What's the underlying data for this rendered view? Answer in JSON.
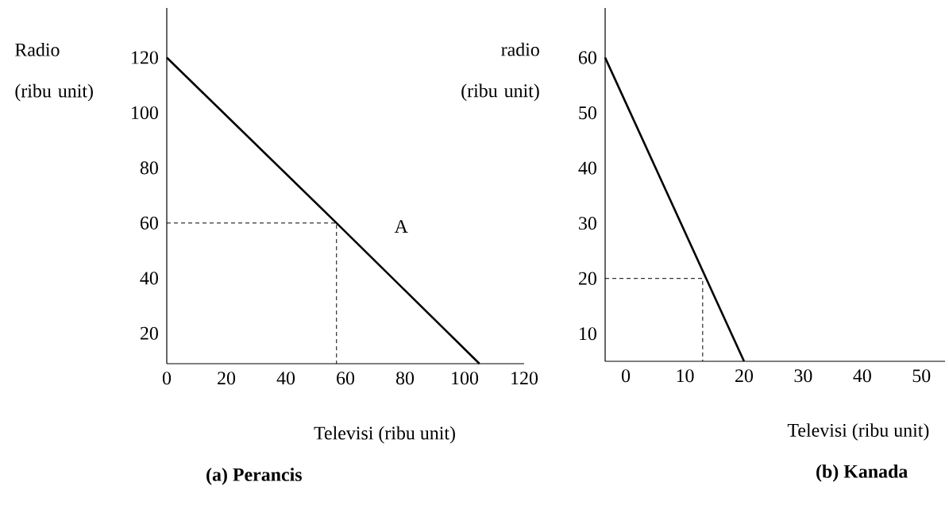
{
  "chart_data": [
    {
      "type": "line",
      "title": "(a) Perancis",
      "xlabel": "Televisi (ribu unit)",
      "ylabel": "Radio (ribu unit)",
      "xlim": [
        0,
        120
      ],
      "ylim": [
        9,
        138
      ],
      "xticks": [
        0,
        20,
        40,
        60,
        80,
        100,
        120
      ],
      "yticks": [
        20,
        40,
        60,
        80,
        100,
        120
      ],
      "annotations": [
        "A"
      ],
      "series": [
        {
          "x": [
            0,
            57,
            105
          ],
          "values": [
            120,
            60,
            9
          ],
          "color": "#000000",
          "line_style": "solid"
        },
        {
          "x": [
            0,
            57,
            57
          ],
          "values": [
            60,
            60,
            9
          ],
          "color": "#000000",
          "line_style": "dashed"
        }
      ]
    },
    {
      "type": "line",
      "title": "(b) Kanada",
      "xlabel": "Televisi (ribu unit)",
      "ylabel": "radio (ribu unit)",
      "xlim": [
        -3.5,
        54
      ],
      "ylim": [
        5,
        69
      ],
      "xticks": [
        0,
        10,
        20,
        30,
        40,
        50
      ],
      "yticks": [
        10,
        20,
        30,
        40,
        50,
        60
      ],
      "series": [
        {
          "x": [
            -3.5,
            20
          ],
          "values": [
            60,
            5
          ],
          "color": "#000000",
          "line_style": "solid"
        },
        {
          "x": [
            -3.5,
            13,
            13
          ],
          "values": [
            20,
            20,
            5
          ],
          "color": "#000000",
          "line_style": "dashed"
        }
      ]
    }
  ]
}
